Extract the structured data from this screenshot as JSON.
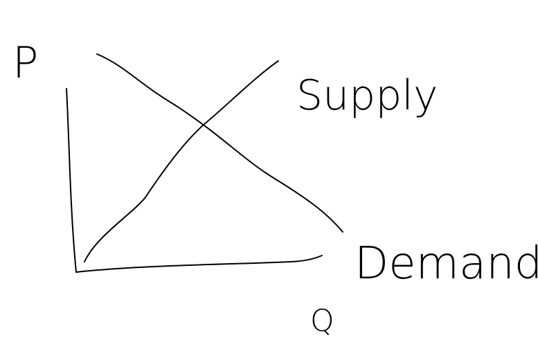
{
  "axes": {
    "y": "P",
    "x": "Q"
  },
  "curves": [
    {
      "label": "Supply"
    },
    {
      "label": "Demand"
    }
  ]
}
